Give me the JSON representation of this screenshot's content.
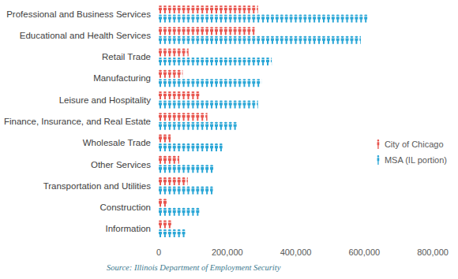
{
  "chart_data": {
    "type": "bar",
    "orientation": "horizontal",
    "categories": [
      "Professional and Business Services",
      "Educational and Health Services",
      "Retail Trade",
      "Manufacturing",
      "Leisure and Hospitality",
      "Finance, Insurance, and Real Estate",
      "Wholesale Trade",
      "Other Services",
      "Transportation and Utilities",
      "Construction",
      "Information"
    ],
    "series": [
      {
        "name": "City of Chicago",
        "color": "#e8554e",
        "values": [
          290000,
          280000,
          87000,
          70000,
          120000,
          142000,
          35000,
          60000,
          85000,
          25000,
          39000
        ]
      },
      {
        "name": "MSA (IL portion)",
        "color": "#2aa6d6",
        "values": [
          610000,
          590000,
          330000,
          300000,
          290000,
          228000,
          186000,
          161000,
          158000,
          120000,
          78000
        ]
      }
    ],
    "xlim": [
      0,
      800000
    ],
    "xticks": [
      0,
      {
        "value": 200000,
        "label": "200,000"
      },
      {
        "value": 400000,
        "label": "400,000"
      },
      {
        "value": 600000,
        "label": "600,000"
      },
      {
        "value": 800000,
        "label": "800,000"
      }
    ],
    "grid": false,
    "legend": "right",
    "source": "Source: Illinois Department of Employment Security"
  }
}
